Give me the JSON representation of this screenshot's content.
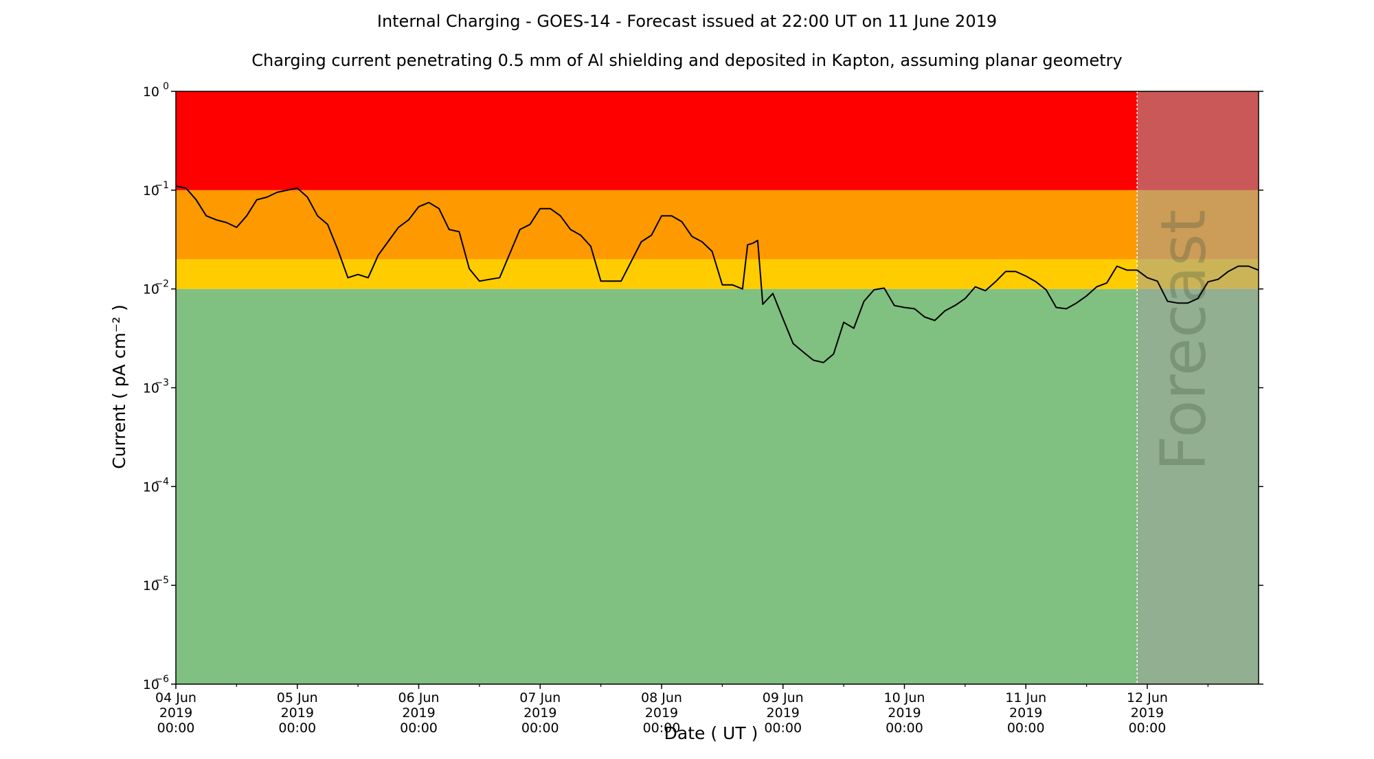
{
  "chart_data": {
    "type": "line",
    "title": "Internal Charging - GOES-14 - Forecast issued at 22:00 UT on 11 June 2019",
    "subtitle": "Charging current penetrating 0.5 mm of Al shielding and deposited in Kapton, assuming planar geometry",
    "xlabel": "Date ( UT )",
    "ylabel": "Current ( pA cm⁻² )",
    "y_scale": "log",
    "ylim": [
      1e-06,
      1
    ],
    "xlim": [
      "2019-06-04 00:00",
      "2019-06-12 22:00"
    ],
    "forecast_start": "2019-06-11 22:00",
    "forecast_label": "Forecast",
    "grid": false,
    "x_ticks": [
      {
        "date": "2019-06-04 00:00",
        "lines": [
          "04 Jun",
          "2019",
          "00:00"
        ]
      },
      {
        "date": "2019-06-05 00:00",
        "lines": [
          "05 Jun",
          "2019",
          "00:00"
        ]
      },
      {
        "date": "2019-06-06 00:00",
        "lines": [
          "06 Jun",
          "2019",
          "00:00"
        ]
      },
      {
        "date": "2019-06-07 00:00",
        "lines": [
          "07 Jun",
          "2019",
          "00:00"
        ]
      },
      {
        "date": "2019-06-08 00:00",
        "lines": [
          "08 Jun",
          "2019",
          "00:00"
        ]
      },
      {
        "date": "2019-06-09 00:00",
        "lines": [
          "09 Jun",
          "2019",
          "00:00"
        ]
      },
      {
        "date": "2019-06-10 00:00",
        "lines": [
          "10 Jun",
          "2019",
          "00:00"
        ]
      },
      {
        "date": "2019-06-11 00:00",
        "lines": [
          "11 Jun",
          "2019",
          "00:00"
        ]
      },
      {
        "date": "2019-06-12 00:00",
        "lines": [
          "12 Jun",
          "2019",
          "00:00"
        ]
      }
    ],
    "y_ticks": [
      {
        "value": 1e-06,
        "base": "10",
        "exp": "−6"
      },
      {
        "value": 1e-05,
        "base": "10",
        "exp": "−5"
      },
      {
        "value": 0.0001,
        "base": "10",
        "exp": "−4"
      },
      {
        "value": 0.001,
        "base": "10",
        "exp": "−3"
      },
      {
        "value": 0.01,
        "base": "10",
        "exp": "−2"
      },
      {
        "value": 0.1,
        "base": "10",
        "exp": "−1"
      },
      {
        "value": 1,
        "base": "10",
        "exp": "0"
      }
    ],
    "bands": [
      {
        "from": 1e-06,
        "to": 0.01,
        "color": "#80c080"
      },
      {
        "from": 0.01,
        "to": 0.02,
        "color": "#ffcc00"
      },
      {
        "from": 0.02,
        "to": 0.1,
        "color": "#ff9900"
      },
      {
        "from": 0.1,
        "to": 1,
        "color": "#ff0000"
      }
    ],
    "forecast_overlay_color": "#a0a0a0",
    "series": [
      {
        "color": "#000000",
        "x": [
          "2019-06-04 00:00",
          "2019-06-04 02:00",
          "2019-06-04 04:00",
          "2019-06-04 06:00",
          "2019-06-04 08:00",
          "2019-06-04 10:00",
          "2019-06-04 12:00",
          "2019-06-04 14:00",
          "2019-06-04 16:00",
          "2019-06-04 18:00",
          "2019-06-04 20:00",
          "2019-06-05 00:00",
          "2019-06-05 02:00",
          "2019-06-05 04:00",
          "2019-06-05 06:00",
          "2019-06-05 08:00",
          "2019-06-05 10:00",
          "2019-06-05 12:00",
          "2019-06-05 14:00",
          "2019-06-05 16:00",
          "2019-06-05 20:00",
          "2019-06-05 22:00",
          "2019-06-06 00:00",
          "2019-06-06 02:00",
          "2019-06-06 04:00",
          "2019-06-06 06:00",
          "2019-06-06 08:00",
          "2019-06-06 10:00",
          "2019-06-06 12:00",
          "2019-06-06 14:00",
          "2019-06-06 16:00",
          "2019-06-06 20:00",
          "2019-06-06 22:00",
          "2019-06-07 00:00",
          "2019-06-07 02:00",
          "2019-06-07 04:00",
          "2019-06-07 06:00",
          "2019-06-07 08:00",
          "2019-06-07 10:00",
          "2019-06-07 12:00",
          "2019-06-07 14:00",
          "2019-06-07 16:00",
          "2019-06-07 20:00",
          "2019-06-07 22:00",
          "2019-06-08 00:00",
          "2019-06-08 02:00",
          "2019-06-08 04:00",
          "2019-06-08 06:00",
          "2019-06-08 08:00",
          "2019-06-08 10:00",
          "2019-06-08 12:00",
          "2019-06-08 14:00",
          "2019-06-08 16:00",
          "2019-06-08 17:00",
          "2019-06-08 18:00",
          "2019-06-08 19:00",
          "2019-06-08 20:00",
          "2019-06-08 22:00",
          "2019-06-09 00:00",
          "2019-06-09 02:00",
          "2019-06-09 04:00",
          "2019-06-09 06:00",
          "2019-06-09 08:00",
          "2019-06-09 10:00",
          "2019-06-09 12:00",
          "2019-06-09 14:00",
          "2019-06-09 16:00",
          "2019-06-09 18:00",
          "2019-06-09 20:00",
          "2019-06-09 22:00",
          "2019-06-10 00:00",
          "2019-06-10 02:00",
          "2019-06-10 04:00",
          "2019-06-10 06:00",
          "2019-06-10 08:00",
          "2019-06-10 10:00",
          "2019-06-10 12:00",
          "2019-06-10 14:00",
          "2019-06-10 16:00",
          "2019-06-10 18:00",
          "2019-06-10 20:00",
          "2019-06-10 22:00",
          "2019-06-11 00:00",
          "2019-06-11 02:00",
          "2019-06-11 04:00",
          "2019-06-11 06:00",
          "2019-06-11 08:00",
          "2019-06-11 10:00",
          "2019-06-11 12:00",
          "2019-06-11 14:00",
          "2019-06-11 16:00",
          "2019-06-11 18:00",
          "2019-06-11 20:00",
          "2019-06-11 22:00",
          "2019-06-12 00:00",
          "2019-06-12 02:00",
          "2019-06-12 04:00",
          "2019-06-12 06:00",
          "2019-06-12 08:00",
          "2019-06-12 10:00",
          "2019-06-12 12:00",
          "2019-06-12 14:00",
          "2019-06-12 16:00",
          "2019-06-12 18:00",
          "2019-06-12 20:00",
          "2019-06-12 22:00"
        ],
        "y": [
          0.11,
          0.105,
          0.08,
          0.055,
          0.05,
          0.047,
          0.042,
          0.055,
          0.08,
          0.085,
          0.095,
          0.105,
          0.085,
          0.055,
          0.045,
          0.025,
          0.013,
          0.014,
          0.013,
          0.022,
          0.042,
          0.05,
          0.068,
          0.075,
          0.065,
          0.04,
          0.038,
          0.016,
          0.012,
          0.0125,
          0.013,
          0.04,
          0.045,
          0.065,
          0.065,
          0.055,
          0.04,
          0.035,
          0.027,
          0.012,
          0.012,
          0.012,
          0.03,
          0.035,
          0.055,
          0.055,
          0.048,
          0.034,
          0.03,
          0.024,
          0.011,
          0.011,
          0.01,
          0.028,
          0.029,
          0.031,
          0.007,
          0.009,
          0.005,
          0.0028,
          0.0023,
          0.0019,
          0.0018,
          0.0022,
          0.0046,
          0.004,
          0.0075,
          0.0098,
          0.0102,
          0.0068,
          0.0065,
          0.0063,
          0.0052,
          0.0048,
          0.006,
          0.0068,
          0.008,
          0.0105,
          0.0096,
          0.0118,
          0.015,
          0.015,
          0.0135,
          0.0118,
          0.0098,
          0.0065,
          0.0063,
          0.0072,
          0.0085,
          0.0105,
          0.0115,
          0.017,
          0.0155,
          0.0155,
          0.013,
          0.012,
          0.0075,
          0.0072,
          0.0072,
          0.008,
          0.0118,
          0.0125,
          0.015,
          0.017,
          0.017,
          0.0155
        ]
      }
    ]
  }
}
